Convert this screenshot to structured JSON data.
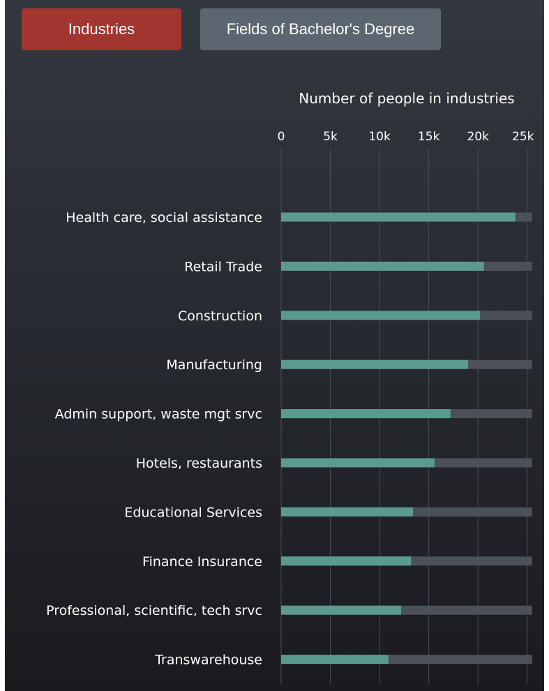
{
  "tabs": [
    {
      "label": "Industries",
      "active": true,
      "color": "#a2352f"
    },
    {
      "label": "Fields of Bachelor's Degree",
      "active": false,
      "color": "#5c6671"
    }
  ],
  "chart_data": {
    "type": "bar",
    "orientation": "horizontal",
    "title": "Number of people in industries",
    "xlim": [
      0,
      25500
    ],
    "ticks": [
      0,
      5000,
      10000,
      15000,
      20000,
      25000
    ],
    "tick_labels": [
      "0",
      "5k",
      "10k",
      "15k",
      "20k",
      "25k"
    ],
    "grid": true,
    "categories": [
      "Health care, social assistance",
      "Retail Trade",
      "Construction",
      "Manufacturing",
      "Admin support, waste mgt srvc",
      "Hotels, restaurants",
      "Educational Services",
      "Finance Insurance",
      "Professional, scientific, tech srvc",
      "Transwarehouse"
    ],
    "values": [
      23800,
      20600,
      20200,
      19000,
      17200,
      15600,
      13400,
      13200,
      12200,
      10900
    ],
    "background_bar_value": 25500,
    "colors": {
      "bar": "#5b9a8e",
      "track": "#4b5059",
      "grid": "#4a4e56"
    }
  }
}
